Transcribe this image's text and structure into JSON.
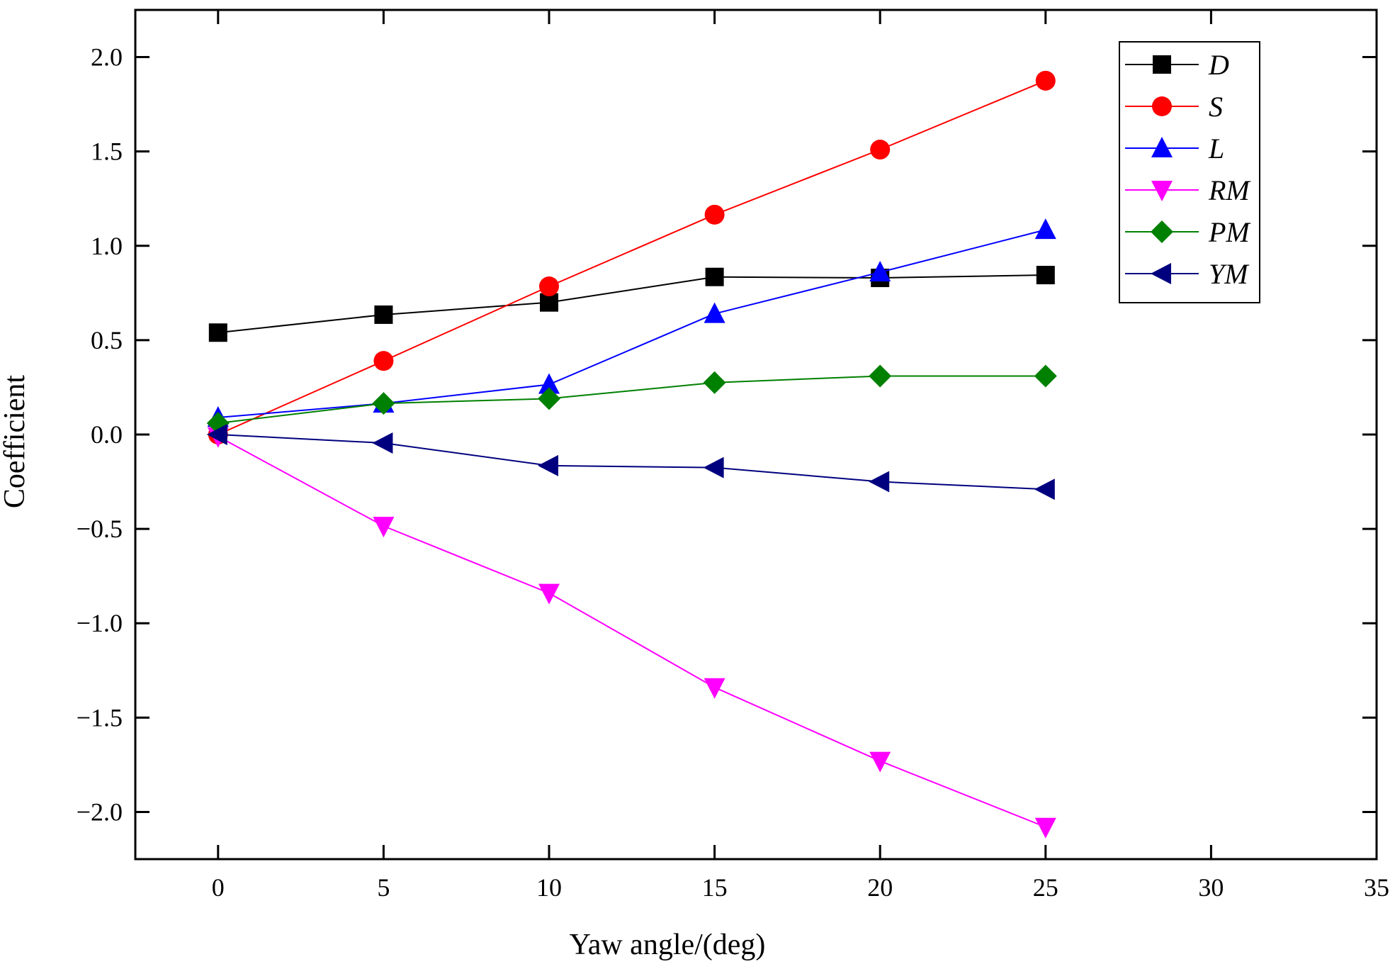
{
  "chart_data": {
    "type": "line",
    "title": "",
    "xlabel": "Yaw angle/(deg)",
    "ylabel": "Coefficient",
    "xlim": [
      -2.5,
      35
    ],
    "ylim": [
      -2.25,
      2.25
    ],
    "xticks": [
      0,
      5,
      10,
      15,
      20,
      25,
      30,
      35
    ],
    "xtick_labels": [
      "0",
      "5",
      "10",
      "15",
      "20",
      "25",
      "30",
      "35"
    ],
    "yticks": [
      -2.0,
      -1.5,
      -1.0,
      -0.5,
      0.0,
      0.5,
      1.0,
      1.5,
      2.0
    ],
    "ytick_labels": [
      "−2.0",
      "−1.5",
      "−1.0",
      "−0.5",
      "0.0",
      "0.5",
      "1.0",
      "1.5",
      "2.0"
    ],
    "grid": false,
    "legend_position": "top-right",
    "x": [
      0,
      5,
      10,
      15,
      20,
      25
    ],
    "series": [
      {
        "name": "D",
        "color": "#000000",
        "marker": "square",
        "values": [
          0.54,
          0.635,
          0.7,
          0.835,
          0.83,
          0.845
        ]
      },
      {
        "name": "S",
        "color": "#ff0000",
        "marker": "circle",
        "values": [
          0.0,
          0.39,
          0.785,
          1.165,
          1.51,
          1.875
        ]
      },
      {
        "name": "L",
        "color": "#0000ff",
        "marker": "triangle-up",
        "values": [
          0.09,
          0.165,
          0.265,
          0.64,
          0.86,
          1.085
        ]
      },
      {
        "name": "RM",
        "color": "#ff00ff",
        "marker": "triangle-down",
        "values": [
          -0.01,
          -0.485,
          -0.84,
          -1.34,
          -1.73,
          -2.08
        ]
      },
      {
        "name": "PM",
        "color": "#008000",
        "marker": "diamond",
        "values": [
          0.06,
          0.165,
          0.19,
          0.275,
          0.31,
          0.31
        ]
      },
      {
        "name": "YM",
        "color": "#00007f",
        "marker": "triangle-left",
        "values": [
          0.0,
          -0.045,
          -0.165,
          -0.175,
          -0.25,
          -0.29
        ]
      }
    ]
  }
}
